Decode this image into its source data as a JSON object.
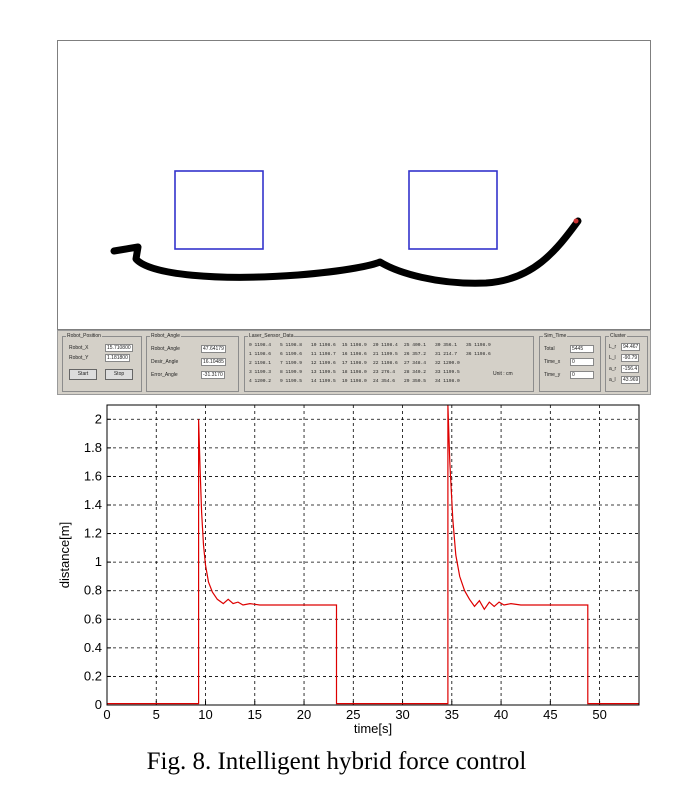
{
  "caption": "Fig. 8. Intelligent hybrid force control",
  "colors": {
    "path": "#000000",
    "obstacle": "#3333cc",
    "series": "#dd0000",
    "panel": "#d4d0c8"
  },
  "sim": {
    "robot_position": {
      "title": "Robot_Position",
      "x_label": "Robot_X",
      "x_value": "15.710800",
      "y_label": "Robot_Y",
      "y_value": "1.181800",
      "start_label": "Start",
      "stop_label": "Stop"
    },
    "robot_angle": {
      "title": "Robot_Angle",
      "rows": [
        {
          "label": "Robot_Angle",
          "value": "47.64179"
        },
        {
          "label": "Desir_Angle",
          "value": "16.10485"
        },
        {
          "label": "Error_Angle",
          "value": "-31.3170"
        }
      ]
    },
    "laser": {
      "title": "Laser_Sensor_Data",
      "unit": "Unit : cm",
      "columns": [
        [
          "0  1198.4",
          "1  1198.6",
          "2  1198.1",
          "3  1199.3",
          "4  1200.2"
        ],
        [
          "5  1198.8",
          "6  1199.6",
          "7  1199.9",
          "8  1199.9",
          "9  1199.5"
        ],
        [
          "10 1198.6",
          "11 1198.7",
          "12 1199.6",
          "13 1199.5",
          "14 1199.5"
        ],
        [
          "15 1198.9",
          "16 1198.6",
          "17 1198.9",
          "18 1198.0",
          "19 1198.0"
        ],
        [
          "20 1198.4",
          "21 1199.5",
          "22 1198.6",
          "23 276.4",
          "24 354.6"
        ],
        [
          "25 400.1",
          "26 357.2",
          "27 348.4",
          "28 340.2",
          "29 350.5"
        ],
        [
          "30 356.1",
          "31 214.7",
          "32 1200.0",
          "33 1199.5",
          "34 1198.0"
        ],
        [
          "35 1198.9",
          "36 1198.6",
          "",
          "",
          ""
        ]
      ]
    },
    "sim_time": {
      "title": "Sim_Time",
      "rows": [
        {
          "label": "Total",
          "value": "5445"
        },
        {
          "label": "Time_x",
          "value": "0"
        },
        {
          "label": "Time_y",
          "value": "0"
        }
      ]
    },
    "cluster": {
      "title": "Cluster",
      "rows": [
        {
          "label": "L_r",
          "value": "94.467"
        },
        {
          "label": "L_l",
          "value": "-90.79"
        },
        {
          "label": "a_r",
          "value": "-156.4"
        },
        {
          "label": "a_l",
          "value": "43.969"
        }
      ]
    }
  },
  "chart_data": {
    "type": "line",
    "xlabel": "time[s]",
    "ylabel": "distance[m]",
    "xlim": [
      0,
      54
    ],
    "ylim": [
      0,
      2.1
    ],
    "xticks": [
      0,
      5,
      10,
      15,
      20,
      25,
      30,
      35,
      40,
      45,
      50
    ],
    "yticks": [
      0,
      0.2,
      0.4,
      0.6,
      0.8,
      1,
      1.2,
      1.4,
      1.6,
      1.8,
      2
    ],
    "grid": true,
    "series": [
      {
        "x": [
          0,
          9.3,
          9.3,
          9.45,
          9.6,
          9.8,
          10,
          10.3,
          10.7,
          11.2,
          11.8,
          12.3,
          12.8,
          13.3,
          13.8,
          14.5,
          15.5,
          17,
          20,
          23.3,
          23.3,
          34.6,
          34.6,
          34.8,
          35.1,
          35.4,
          35.8,
          36.3,
          36.8,
          37.3,
          37.8,
          38.3,
          38.8,
          39.3,
          39.8,
          40.3,
          41,
          42,
          44,
          46,
          48.8,
          48.8,
          54
        ],
        "y": [
          0.01,
          0.01,
          2.0,
          1.65,
          1.35,
          1.12,
          0.98,
          0.86,
          0.79,
          0.74,
          0.71,
          0.74,
          0.71,
          0.72,
          0.7,
          0.71,
          0.7,
          0.7,
          0.7,
          0.7,
          0.01,
          0.01,
          2.1,
          1.7,
          1.3,
          1.05,
          0.9,
          0.8,
          0.74,
          0.69,
          0.73,
          0.67,
          0.72,
          0.69,
          0.72,
          0.7,
          0.71,
          0.7,
          0.7,
          0.7,
          0.7,
          0.01,
          0.01
        ]
      }
    ]
  }
}
